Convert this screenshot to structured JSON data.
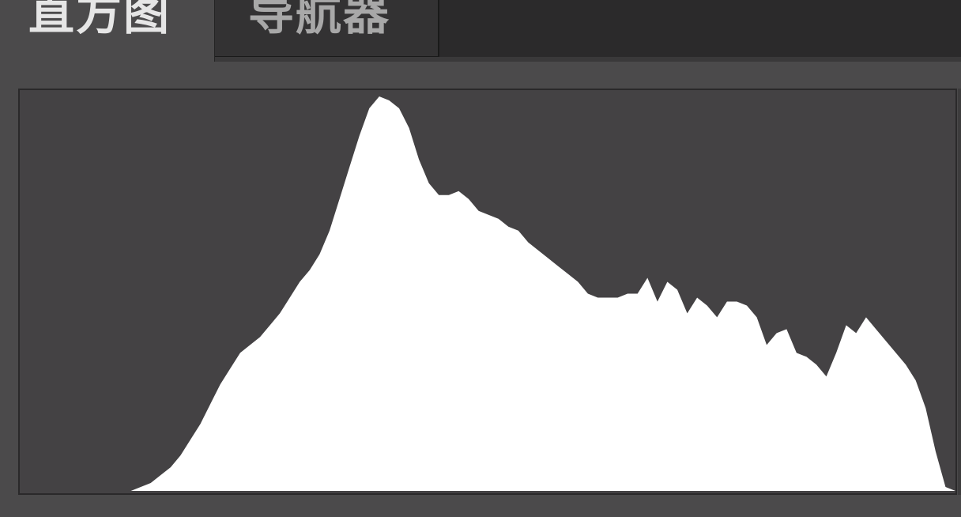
{
  "tabs": [
    {
      "id": "histogram",
      "label": "直方图",
      "active": true
    },
    {
      "id": "navigator",
      "label": "导航器",
      "active": false
    }
  ],
  "histogram": {
    "background_color": "#444244",
    "fill_color": "#ffffff",
    "values": [
      0,
      0,
      0.01,
      0.02,
      0.04,
      0.06,
      0.09,
      0.13,
      0.17,
      0.22,
      0.27,
      0.31,
      0.35,
      0.37,
      0.39,
      0.42,
      0.45,
      0.49,
      0.53,
      0.56,
      0.6,
      0.66,
      0.74,
      0.82,
      0.9,
      0.97,
      1.0,
      0.99,
      0.97,
      0.92,
      0.84,
      0.78,
      0.75,
      0.75,
      0.76,
      0.74,
      0.71,
      0.7,
      0.69,
      0.67,
      0.66,
      0.63,
      0.61,
      0.59,
      0.57,
      0.55,
      0.53,
      0.5,
      0.49,
      0.49,
      0.49,
      0.5,
      0.5,
      0.54,
      0.48,
      0.53,
      0.51,
      0.45,
      0.49,
      0.47,
      0.44,
      0.48,
      0.48,
      0.47,
      0.44,
      0.37,
      0.4,
      0.41,
      0.35,
      0.34,
      0.32,
      0.29,
      0.35,
      0.42,
      0.4,
      0.44,
      0.41,
      0.38,
      0.35,
      0.32,
      0.28,
      0.21,
      0.1,
      0.01,
      0
    ]
  }
}
